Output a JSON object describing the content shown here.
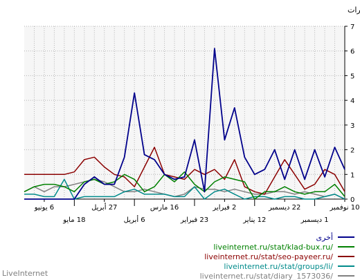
{
  "footer": {
    "brand": "LiveInternet"
  },
  "chart_data": {
    "type": "line",
    "title": "",
    "ylabel": "المرات",
    "xlabel": "",
    "ylim": [
      0,
      7
    ],
    "yticks": [
      0,
      1,
      2,
      3,
      4,
      5,
      6,
      7
    ],
    "x_direction": "right-to-left",
    "grid": true,
    "legend_position": "bottom-right",
    "x_count": 33,
    "x_tick_rows": [
      {
        "row": 1,
        "labels": [
          {
            "index": 0,
            "label": "10 نوفمبر"
          },
          {
            "index": 6,
            "label": "22 ديسمبر"
          },
          {
            "index": 12,
            "label": "2 فبراير"
          },
          {
            "index": 18,
            "label": "16 مارس"
          },
          {
            "index": 24,
            "label": "27 أبريل"
          },
          {
            "index": 30,
            "label": "6 يونيو"
          }
        ]
      },
      {
        "row": 2,
        "labels": [
          {
            "index": 3,
            "label": "1 ديسمبر"
          },
          {
            "index": 9,
            "label": "12 يناير"
          },
          {
            "index": 15,
            "label": "23 فبراير"
          },
          {
            "index": 21,
            "label": "6 أبريل"
          },
          {
            "index": 27,
            "label": "18 مايو"
          }
        ]
      }
    ],
    "series": [
      {
        "name": "أخرى",
        "color": "#00008b",
        "values": [
          1.2,
          2.1,
          0.9,
          2.0,
          0.8,
          2.0,
          0.8,
          2.0,
          1.2,
          1.0,
          1.7,
          3.7,
          2.4,
          6.1,
          0.3,
          2.4,
          0.9,
          0.8,
          1.0,
          1.6,
          1.8,
          4.3,
          1.7,
          0.6,
          0.6,
          0.9,
          0.6,
          0.0,
          0.0,
          0.0,
          0.0,
          0.0,
          0.0
        ]
      },
      {
        "name": "liveinternet.ru/stat/klad-bux.ru/",
        "color": "#008000",
        "values": [
          0.1,
          0.6,
          0.3,
          0.3,
          0.2,
          0.3,
          0.5,
          0.3,
          0.3,
          0.0,
          0.7,
          0.8,
          0.9,
          0.7,
          0.3,
          0.6,
          1.1,
          0.7,
          1.0,
          0.5,
          0.3,
          0.8,
          1.0,
          0.7,
          0.6,
          0.8,
          0.7,
          0.3,
          0.5,
          0.6,
          0.6,
          0.5,
          0.3
        ]
      },
      {
        "name": "liveinternet.ru/stat/seo-payeer.ru/",
        "color": "#8b0000",
        "values": [
          0.3,
          1.0,
          1.2,
          0.6,
          0.4,
          1.0,
          1.6,
          0.9,
          0.2,
          0.3,
          0.5,
          1.6,
          0.8,
          1.2,
          1.0,
          1.2,
          0.8,
          0.9,
          1.0,
          2.1,
          1.3,
          0.5,
          0.9,
          1.0,
          1.3,
          1.7,
          1.6,
          1.1,
          1.0,
          1.0,
          1.0,
          1.0,
          1.0
        ]
      },
      {
        "name": "liveinternet.ru/stat/groups/li/",
        "color": "#008b8b",
        "values": [
          0.0,
          0.2,
          0.1,
          0.0,
          0.0,
          0.1,
          0.1,
          0.0,
          0.1,
          0.1,
          0.0,
          0.2,
          0.4,
          0.3,
          0.0,
          0.5,
          0.1,
          0.1,
          0.2,
          0.2,
          0.2,
          0.4,
          0.3,
          0.1,
          0.1,
          0.1,
          0.1,
          0.0,
          0.8,
          0.1,
          0.1,
          0.2,
          0.2
        ]
      },
      {
        "name": "liveinternet.ru/stat/diary_1573036/",
        "color": "#808080",
        "values": [
          0.0,
          0.2,
          0.1,
          0.2,
          0.3,
          0.2,
          0.3,
          0.3,
          0.2,
          0.2,
          0.3,
          0.4,
          0.3,
          0.4,
          0.4,
          0.5,
          0.2,
          0.1,
          0.2,
          0.3,
          0.4,
          0.3,
          0.3,
          0.5,
          0.7,
          0.8,
          0.7,
          0.6,
          0.5,
          0.5,
          0.3,
          0.5,
          0.3
        ]
      }
    ]
  }
}
